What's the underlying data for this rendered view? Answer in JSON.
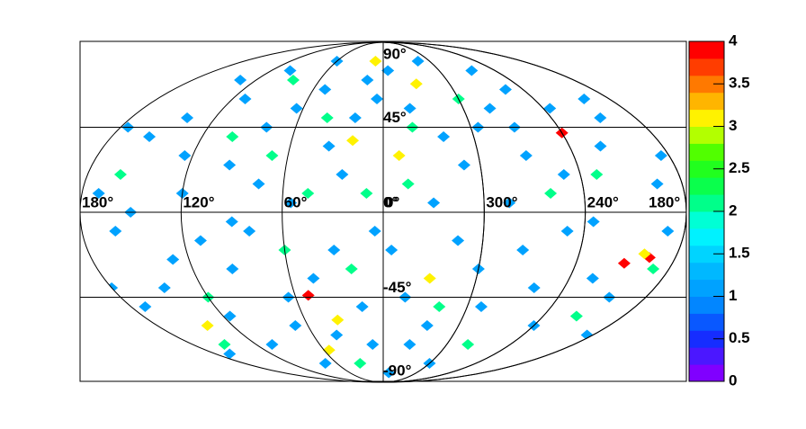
{
  "chart_data": {
    "type": "skymap",
    "lonticks": [
      {
        "value": 180,
        "label": "180°"
      },
      {
        "value": 120,
        "label": "120°"
      },
      {
        "value": 60,
        "label": "60°"
      },
      {
        "value": 0,
        "label": "0°"
      },
      {
        "value": 300,
        "label": "300°"
      },
      {
        "value": 240,
        "label": "240°"
      },
      {
        "value": -180,
        "label": "180°"
      }
    ],
    "latticks": [
      {
        "value": 90,
        "label": "90°"
      },
      {
        "value": 45,
        "label": "45°"
      },
      {
        "value": 0,
        "label": "0°"
      },
      {
        "value": -45,
        "label": "-45°"
      },
      {
        "value": -90,
        "label": "-90°"
      }
    ],
    "zlim": [
      0,
      4
    ],
    "zticks": [
      0,
      0.5,
      1,
      1.5,
      2,
      2.5,
      3,
      3.5,
      4
    ],
    "palette": [
      "#8000ff",
      "#1030ff",
      "#0090ff",
      "#00c0ff",
      "#00ffff",
      "#00ff60",
      "#30ff00",
      "#ffff00",
      "#ff8000",
      "#ff0000"
    ],
    "cells": [
      [
        240,
        42,
        4
      ],
      [
        51,
        -44,
        4
      ],
      [
        210,
        -27,
        4
      ],
      [
        196,
        -24,
        4
      ],
      [
        10,
        80,
        3
      ],
      [
        330,
        68,
        3
      ],
      [
        20,
        38,
        3
      ],
      [
        350,
        30,
        3
      ],
      [
        200,
        -22,
        3
      ],
      [
        35,
        -57,
        3
      ],
      [
        55,
        -73,
        3
      ],
      [
        140,
        -60,
        3
      ],
      [
        330,
        -35,
        3
      ],
      [
        40,
        50,
        2
      ],
      [
        70,
        30,
        2
      ],
      [
        100,
        40,
        2
      ],
      [
        340,
        45,
        2
      ],
      [
        300,
        60,
        2
      ],
      [
        260,
        10,
        2
      ],
      [
        230,
        20,
        2
      ],
      [
        190,
        -30,
        2
      ],
      [
        20,
        -30,
        2
      ],
      [
        60,
        -20,
        2
      ],
      [
        120,
        -45,
        2
      ],
      [
        150,
        -70,
        2
      ],
      [
        320,
        -50,
        2
      ],
      [
        280,
        -70,
        2
      ],
      [
        10,
        10,
        2
      ],
      [
        345,
        15,
        2
      ],
      [
        160,
        20,
        2
      ],
      [
        85,
        70,
        2
      ],
      [
        45,
        10,
        2
      ],
      [
        30,
        -80,
        2
      ],
      [
        215,
        -55,
        2
      ],
      [
        5,
        60,
        1
      ],
      [
        15,
        70,
        1
      ],
      [
        25,
        20,
        1
      ],
      [
        35,
        35,
        1
      ],
      [
        50,
        65,
        1
      ],
      [
        65,
        55,
        1
      ],
      [
        80,
        45,
        1
      ],
      [
        95,
        25,
        1
      ],
      [
        110,
        60,
        1
      ],
      [
        125,
        30,
        1
      ],
      [
        140,
        50,
        1
      ],
      [
        155,
        40,
        1
      ],
      [
        170,
        10,
        1
      ],
      [
        175,
        45,
        1
      ],
      [
        135,
        70,
        1
      ],
      [
        100,
        75,
        1
      ],
      [
        60,
        80,
        1
      ],
      [
        355,
        75,
        1
      ],
      [
        340,
        55,
        1
      ],
      [
        320,
        40,
        1
      ],
      [
        310,
        25,
        1
      ],
      [
        295,
        45,
        1
      ],
      [
        280,
        55,
        1
      ],
      [
        270,
        30,
        1
      ],
      [
        255,
        65,
        1
      ],
      [
        250,
        20,
        1
      ],
      [
        235,
        55,
        1
      ],
      [
        220,
        35,
        1
      ],
      [
        205,
        50,
        1
      ],
      [
        195,
        15,
        1
      ],
      [
        185,
        30,
        1
      ],
      [
        265,
        75,
        1
      ],
      [
        315,
        80,
        1
      ],
      [
        5,
        -10,
        1
      ],
      [
        15,
        -50,
        1
      ],
      [
        30,
        -20,
        1
      ],
      [
        45,
        -35,
        1
      ],
      [
        70,
        -60,
        1
      ],
      [
        80,
        -10,
        1
      ],
      [
        95,
        -30,
        1
      ],
      [
        110,
        -15,
        1
      ],
      [
        130,
        -25,
        1
      ],
      [
        145,
        -40,
        1
      ],
      [
        160,
        -10,
        1
      ],
      [
        170,
        -50,
        1
      ],
      [
        165,
        -75,
        1
      ],
      [
        105,
        -70,
        1
      ],
      [
        75,
        -80,
        1
      ],
      [
        40,
        -65,
        1
      ],
      [
        355,
        -20,
        1
      ],
      [
        345,
        -45,
        1
      ],
      [
        335,
        -70,
        1
      ],
      [
        315,
        -15,
        1
      ],
      [
        300,
        -30,
        1
      ],
      [
        290,
        -50,
        1
      ],
      [
        275,
        -20,
        1
      ],
      [
        260,
        -40,
        1
      ],
      [
        250,
        -10,
        1
      ],
      [
        240,
        -60,
        1
      ],
      [
        225,
        -35,
        1
      ],
      [
        205,
        -45,
        1
      ],
      [
        190,
        -10,
        1
      ],
      [
        185,
        -65,
        1
      ],
      [
        300,
        -80,
        1
      ],
      [
        350,
        -85,
        1
      ],
      [
        120,
        10,
        1
      ],
      [
        90,
        -5,
        1
      ],
      [
        55,
        5,
        1
      ],
      [
        330,
        5,
        1
      ],
      [
        285,
        5,
        1
      ],
      [
        235,
        -5,
        1
      ],
      [
        150,
        0,
        1
      ],
      [
        20,
        50,
        1
      ],
      [
        75,
        15,
        1
      ],
      [
        115,
        -55,
        1
      ],
      [
        325,
        -60,
        1
      ],
      [
        270,
        45,
        1
      ],
      [
        180,
        -40,
        1
      ],
      [
        200,
        60,
        1
      ],
      [
        10,
        -70,
        1
      ],
      [
        65,
        -45,
        1
      ]
    ]
  }
}
